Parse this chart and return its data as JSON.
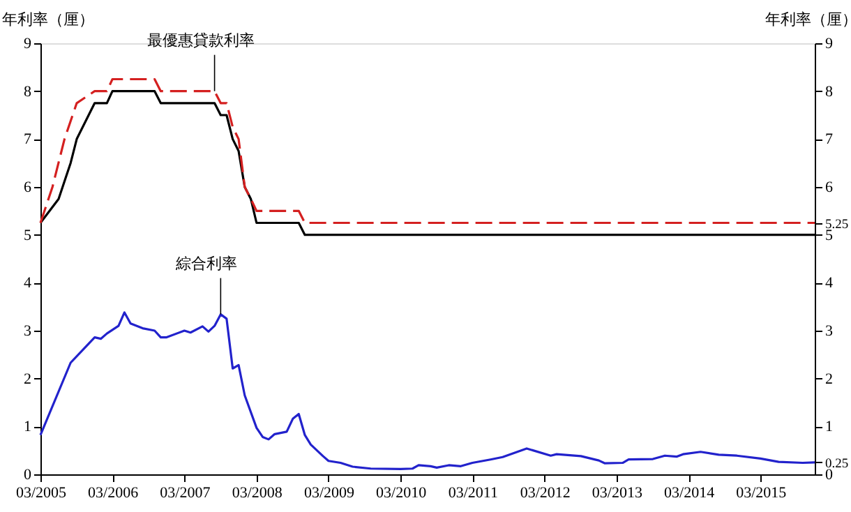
{
  "chart_data": {
    "type": "line",
    "ylabel": "年利率（厘）",
    "y2label": "年利率（厘）",
    "xlim": [
      "2005-03",
      "2015-12"
    ],
    "xticks": [
      {
        "value": "2005-03",
        "label": "03/2005"
      },
      {
        "value": "2006-03",
        "label": "03/2006"
      },
      {
        "value": "2007-03",
        "label": "03/2007"
      },
      {
        "value": "2008-03",
        "label": "03/2008"
      },
      {
        "value": "2009-03",
        "label": "03/2009"
      },
      {
        "value": "2010-03",
        "label": "03/2010"
      },
      {
        "value": "2011-03",
        "label": "03/2011"
      },
      {
        "value": "2012-03",
        "label": "03/2012"
      },
      {
        "value": "2013-03",
        "label": "03/2013"
      },
      {
        "value": "2014-03",
        "label": "03/2014"
      },
      {
        "value": "2015-03",
        "label": "03/2015"
      }
    ],
    "ylim": [
      0,
      9
    ],
    "yticks": [
      0,
      1,
      2,
      3,
      4,
      5,
      6,
      7,
      8,
      9
    ],
    "y2lim": [
      0,
      9
    ],
    "y2ticks": [
      0,
      0.25,
      1,
      2,
      3,
      4,
      5,
      5.25,
      6,
      7,
      8,
      9
    ],
    "grid": false,
    "marker": "none",
    "series": [
      {
        "color": "#000000",
        "line_style": "solid",
        "x": [
          "2005-03",
          "2005-06",
          "2005-08",
          "2005-09",
          "2005-12",
          "2006-02",
          "2006-03",
          "2006-10",
          "2006-11",
          "2007-08",
          "2007-09",
          "2007-10",
          "2007-11",
          "2007-12",
          "2008-01",
          "2008-02",
          "2008-03",
          "2008-10",
          "2008-11",
          "2015-12"
        ],
        "values": [
          5.25,
          5.75,
          6.5,
          7.0,
          7.75,
          7.75,
          8.0,
          8.0,
          7.75,
          7.75,
          7.5,
          7.5,
          7.0,
          6.75,
          6.0,
          5.75,
          5.25,
          5.25,
          5.0,
          5.0
        ]
      },
      {
        "color": "#d42020",
        "line_style": "dashed",
        "x": [
          "2005-03",
          "2005-05",
          "2005-07",
          "2005-09",
          "2005-12",
          "2006-02",
          "2006-03",
          "2006-10",
          "2006-11",
          "2007-08",
          "2007-09",
          "2007-10",
          "2007-11",
          "2007-12",
          "2008-01",
          "2008-02",
          "2008-03",
          "2008-10",
          "2008-11",
          "2015-12"
        ],
        "values": [
          5.25,
          6.0,
          7.0,
          7.75,
          8.0,
          8.0,
          8.25,
          8.25,
          8.0,
          8.0,
          7.75,
          7.75,
          7.25,
          7.0,
          6.0,
          5.75,
          5.5,
          5.5,
          5.25,
          5.25
        ]
      },
      {
        "color": "#2222cc",
        "line_style": "solid",
        "x": [
          "2005-03",
          "2005-08",
          "2005-12",
          "2006-01",
          "2006-02",
          "2006-04",
          "2006-05",
          "2006-06",
          "2006-08",
          "2006-10",
          "2006-11",
          "2006-12",
          "2007-03",
          "2007-04",
          "2007-06",
          "2007-07",
          "2007-08",
          "2007-09",
          "2007-10",
          "2007-11",
          "2007-12",
          "2008-01",
          "2008-03",
          "2008-04",
          "2008-05",
          "2008-06",
          "2008-08",
          "2008-09",
          "2008-10",
          "2008-11",
          "2008-12",
          "2009-02",
          "2009-03",
          "2009-05",
          "2009-07",
          "2009-10",
          "2010-03",
          "2010-05",
          "2010-06",
          "2010-08",
          "2010-09",
          "2010-11",
          "2011-01",
          "2011-03",
          "2011-06",
          "2011-08",
          "2011-12",
          "2012-04",
          "2012-05",
          "2012-09",
          "2012-12",
          "2013-01",
          "2013-04",
          "2013-05",
          "2013-09",
          "2013-11",
          "2014-01",
          "2014-02",
          "2014-05",
          "2014-08",
          "2014-11",
          "2015-03",
          "2015-06",
          "2015-10",
          "2015-12"
        ],
        "values": [
          0.82,
          2.33,
          2.86,
          2.83,
          2.94,
          3.1,
          3.38,
          3.15,
          3.05,
          3.0,
          2.86,
          2.86,
          3.0,
          2.96,
          3.09,
          2.98,
          3.1,
          3.34,
          3.25,
          2.21,
          2.28,
          1.65,
          0.97,
          0.78,
          0.73,
          0.84,
          0.89,
          1.16,
          1.26,
          0.82,
          0.62,
          0.38,
          0.28,
          0.24,
          0.16,
          0.12,
          0.11,
          0.12,
          0.19,
          0.17,
          0.14,
          0.19,
          0.17,
          0.24,
          0.31,
          0.36,
          0.54,
          0.39,
          0.42,
          0.38,
          0.29,
          0.23,
          0.24,
          0.31,
          0.32,
          0.39,
          0.37,
          0.42,
          0.47,
          0.41,
          0.39,
          0.33,
          0.26,
          0.24,
          0.25
        ]
      }
    ],
    "annotations": [
      {
        "text": "最優惠貸款利率",
        "x": "2007-08",
        "y": 8.0
      },
      {
        "text": "綜合利率",
        "x": "2007-09",
        "y": 3.34
      }
    ]
  }
}
